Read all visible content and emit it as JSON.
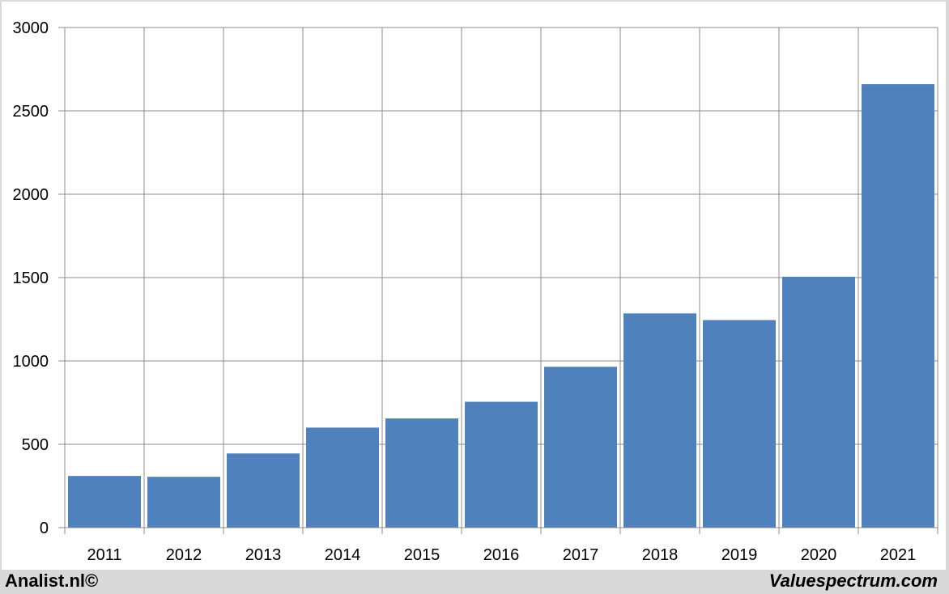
{
  "chart_data": {
    "type": "bar",
    "title": "",
    "xlabel": "",
    "ylabel": "",
    "categories": [
      "2011",
      "2012",
      "2013",
      "2014",
      "2015",
      "2016",
      "2017",
      "2018",
      "2019",
      "2020",
      "2021"
    ],
    "values": [
      310,
      305,
      445,
      600,
      655,
      755,
      965,
      1285,
      1245,
      1505,
      2660
    ],
    "ylim": [
      0,
      3000
    ],
    "yticks": [
      "0",
      "500",
      "1000",
      "1500",
      "2000",
      "2500",
      "3000"
    ],
    "grid": true,
    "legend": "none",
    "bar_color": "#4f81bd",
    "grid_color": "#8c8c8c"
  },
  "footer": {
    "left_text": "Analist.nl©",
    "right_text": "Valuespectrum.com"
  }
}
